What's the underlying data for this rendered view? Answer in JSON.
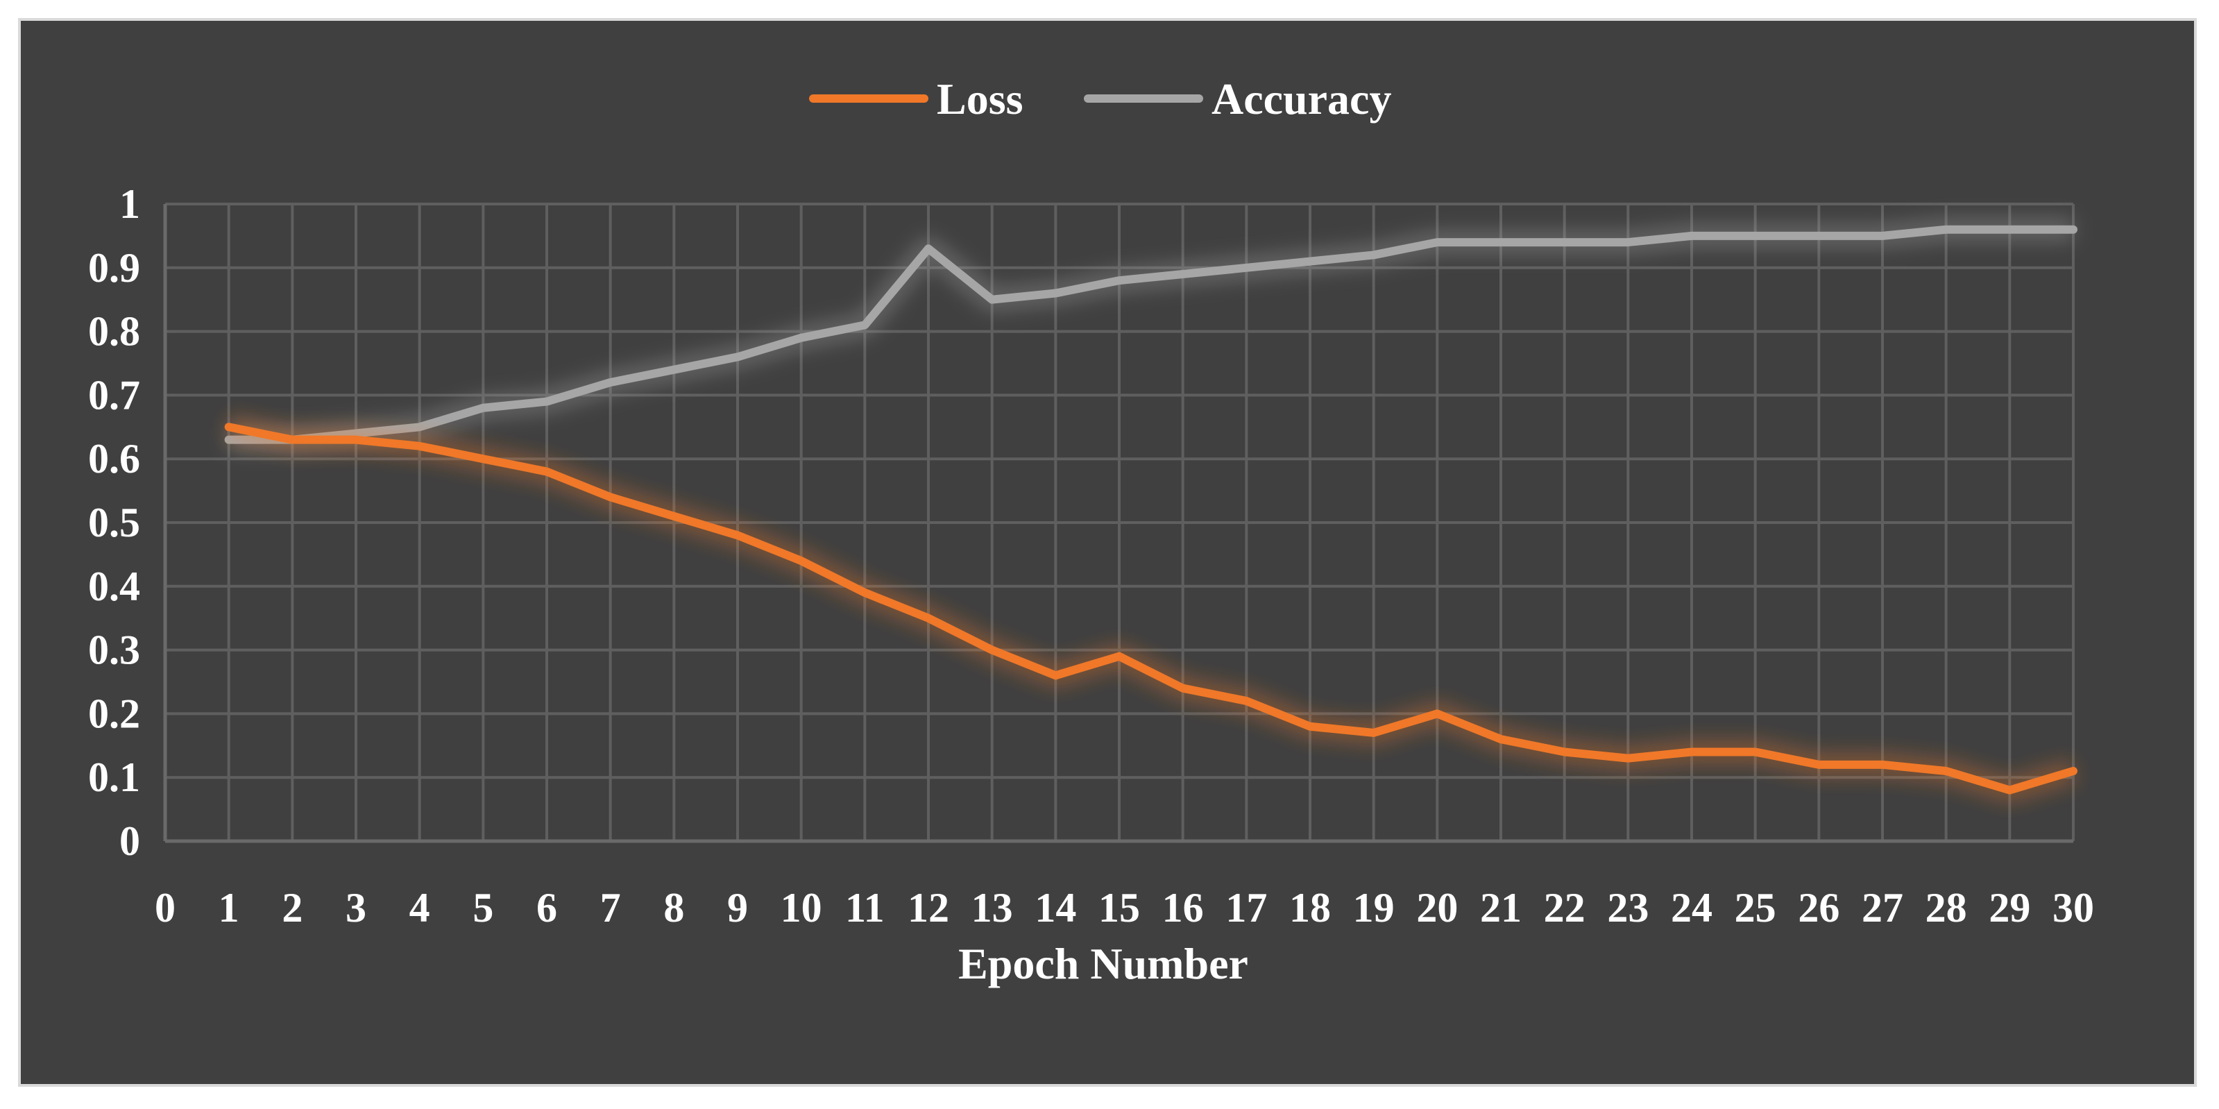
{
  "chart_data": {
    "type": "line",
    "xlabel": "Epoch Number",
    "ylabel": "",
    "xlim": [
      0,
      30
    ],
    "ylim": [
      0,
      1
    ],
    "x_ticks": [
      "0",
      "1",
      "2",
      "3",
      "4",
      "5",
      "6",
      "7",
      "8",
      "9",
      "10",
      "11",
      "12",
      "13",
      "14",
      "15",
      "16",
      "17",
      "18",
      "19",
      "20",
      "21",
      "22",
      "23",
      "24",
      "25",
      "26",
      "27",
      "28",
      "29",
      "30"
    ],
    "y_ticks": [
      "0",
      "0.1",
      "0.2",
      "0.3",
      "0.4",
      "0.5",
      "0.6",
      "0.7",
      "0.8",
      "0.9",
      "1"
    ],
    "grid": true,
    "legend_position": "top-center",
    "x": [
      1,
      2,
      3,
      4,
      5,
      6,
      7,
      8,
      9,
      10,
      11,
      12,
      13,
      14,
      15,
      16,
      17,
      18,
      19,
      20,
      21,
      22,
      23,
      24,
      25,
      26,
      27,
      28,
      29,
      30
    ],
    "series": [
      {
        "name": "Loss",
        "color": "#f07828",
        "values": [
          0.65,
          0.63,
          0.63,
          0.62,
          0.6,
          0.58,
          0.54,
          0.51,
          0.48,
          0.44,
          0.39,
          0.35,
          0.3,
          0.26,
          0.29,
          0.24,
          0.22,
          0.18,
          0.17,
          0.2,
          0.16,
          0.14,
          0.13,
          0.14,
          0.14,
          0.12,
          0.12,
          0.11,
          0.08,
          0.11
        ]
      },
      {
        "name": "Accuracy",
        "color": "#a6a6a6",
        "values": [
          0.63,
          0.63,
          0.64,
          0.65,
          0.68,
          0.69,
          0.72,
          0.74,
          0.76,
          0.79,
          0.81,
          0.93,
          0.85,
          0.86,
          0.88,
          0.89,
          0.9,
          0.91,
          0.92,
          0.94,
          0.94,
          0.94,
          0.94,
          0.95,
          0.95,
          0.95,
          0.95,
          0.96,
          0.96,
          0.96
        ]
      }
    ]
  }
}
